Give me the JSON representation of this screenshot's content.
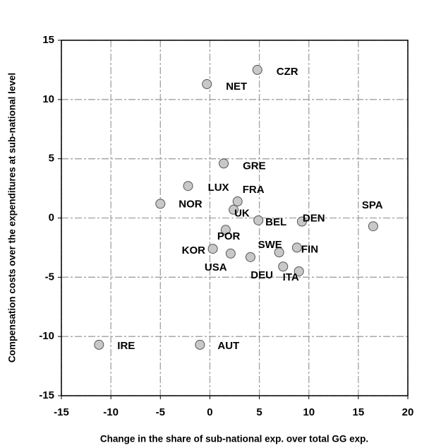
{
  "chart_data": {
    "type": "scatter",
    "x_label": "Change in the share of sub-national exp. over total GG exp.",
    "y_label": "Compensation costs over the expenditures at sub-national level",
    "labels": [
      "CZR",
      "NET",
      "GRE",
      "LUX",
      "FRA",
      "NOR",
      "UK",
      "BEL",
      "DEN",
      "SPA",
      "POR",
      "KOR",
      "USA",
      null,
      "SWE",
      "FIN",
      "DEU",
      "ITA",
      "IRE",
      "AUT"
    ],
    "x": [
      4.8,
      -0.3,
      1.4,
      -2.2,
      2.8,
      -5.0,
      2.4,
      4.9,
      9.3,
      16.5,
      1.6,
      0.3,
      2.1,
      4.1,
      7.0,
      8.8,
      7.4,
      9.0,
      -11.2,
      -1.0
    ],
    "y": [
      12.5,
      11.3,
      4.6,
      2.7,
      1.4,
      1.2,
      0.7,
      -0.2,
      -0.3,
      -0.7,
      -1.0,
      -2.6,
      -3.0,
      -3.3,
      -2.9,
      -2.5,
      -4.1,
      -4.5,
      -10.7,
      -10.7
    ],
    "color": "#c8c8c8",
    "xlim": [
      -15,
      20
    ],
    "ylim": [
      -15,
      15
    ],
    "xticks": [
      -15,
      -10,
      -5,
      0,
      5,
      10,
      15,
      20
    ],
    "yticks": [
      -15,
      -10,
      -5,
      0,
      5,
      10,
      15
    ],
    "grid": true
  }
}
